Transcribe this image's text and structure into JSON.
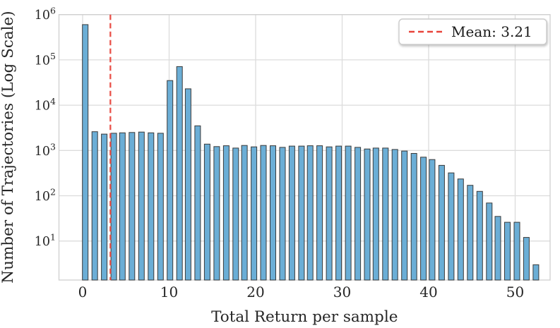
{
  "figure": {
    "x_axis": {
      "label": "Total Return per sample",
      "tick_labels": [
        "0",
        "10",
        "20",
        "30",
        "40",
        "50"
      ],
      "tick_values": [
        0,
        10,
        20,
        30,
        40,
        50
      ],
      "range": [
        -2.7,
        54.0
      ]
    },
    "y_axis": {
      "label": "Number of Trajectories (Log Scale)",
      "scale": "log",
      "tick_base": "10",
      "tick_exponents": [
        1,
        2,
        3,
        4,
        5,
        6
      ],
      "range": [
        1.4,
        1000000
      ]
    },
    "legend": {
      "label": "Mean: 3.21",
      "position": "upper-right",
      "sample_style": "dashed-line"
    },
    "mean_line": {
      "value": 3.21,
      "style": "dashed",
      "orientation": "vertical"
    },
    "grid": "on"
  },
  "chart_data": {
    "type": "bar",
    "title": "",
    "xlabel": "Total Return per sample",
    "ylabel": "Number of Trajectories (Log Scale)",
    "y_scale": "log",
    "ylim": [
      1.4,
      1000000
    ],
    "xlim": [
      -2.7,
      54.0
    ],
    "bin_width": 1.085,
    "x": [
      0.3,
      1.4,
      2.5,
      3.6,
      4.6,
      5.7,
      6.8,
      7.9,
      9.0,
      10.1,
      11.2,
      12.2,
      13.3,
      14.4,
      15.5,
      16.6,
      17.7,
      18.7,
      19.8,
      20.9,
      22.0,
      23.1,
      24.2,
      25.3,
      26.3,
      27.4,
      28.5,
      29.6,
      30.7,
      31.8,
      32.9,
      33.9,
      35.0,
      36.1,
      37.2,
      38.3,
      39.4,
      40.4,
      41.5,
      42.6,
      43.7,
      44.8,
      45.9,
      47.0,
      48.0,
      49.1,
      50.2,
      51.3,
      52.4
    ],
    "values": [
      600000,
      2600,
      2300,
      2400,
      2450,
      2500,
      2550,
      2450,
      2400,
      35000,
      71000,
      23000,
      3500,
      1380,
      1220,
      1270,
      1130,
      1290,
      1200,
      1290,
      1270,
      1170,
      1250,
      1250,
      1270,
      1270,
      1200,
      1250,
      1250,
      1170,
      1080,
      1130,
      1130,
      1050,
      970,
      860,
      710,
      630,
      470,
      320,
      235,
      170,
      125,
      69,
      35,
      26,
      26,
      12,
      3
    ],
    "mean": 3.21,
    "legend_entries": [
      "Mean: 3.21"
    ]
  },
  "colors": {
    "bar_fill": "#6BAED6",
    "bar_edge": "#3A3A3A",
    "mean_line": "#E8433A",
    "grid": "#DCDCDC",
    "spine": "#CFCFCF",
    "text": "#262626",
    "legend_border": "#CCCCCC",
    "background": "#FFFFFF"
  }
}
